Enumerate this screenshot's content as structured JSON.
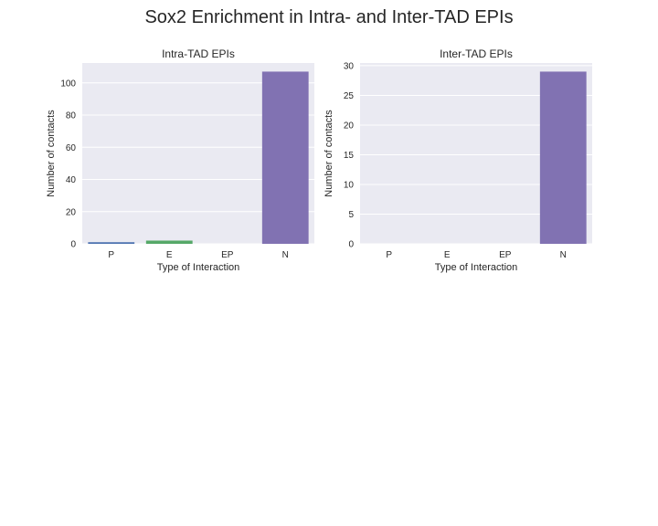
{
  "figure": {
    "title": "Sox2 Enrichment in Intra- and Inter-TAD EPIs"
  },
  "chart_data": [
    {
      "type": "bar",
      "title": "Intra-TAD EPIs",
      "xlabel": "Type of Interaction",
      "ylabel": "Number of contacts",
      "categories": [
        "P",
        "E",
        "EP",
        "N"
      ],
      "values": [
        1,
        2,
        0,
        107
      ],
      "colors": [
        "#4c72b0",
        "#55a868",
        "#c44e52",
        "#8172b2"
      ],
      "ylim": [
        0,
        112.35
      ],
      "yticks": [
        "0",
        "20",
        "40",
        "60",
        "80",
        "100"
      ],
      "grid": true,
      "background": "#eaeaf2"
    },
    {
      "type": "bar",
      "title": "Inter-TAD EPIs",
      "xlabel": "Type of Interaction",
      "ylabel": "Number of contacts",
      "categories": [
        "P",
        "E",
        "EP",
        "N"
      ],
      "values": [
        0,
        0,
        0,
        29
      ],
      "colors": [
        "#4c72b0",
        "#55a868",
        "#c44e52",
        "#8172b2"
      ],
      "ylim": [
        0,
        30.45
      ],
      "yticks": [
        "0",
        "5",
        "10",
        "15",
        "20",
        "25",
        "30"
      ],
      "grid": true,
      "background": "#eaeaf2"
    }
  ]
}
